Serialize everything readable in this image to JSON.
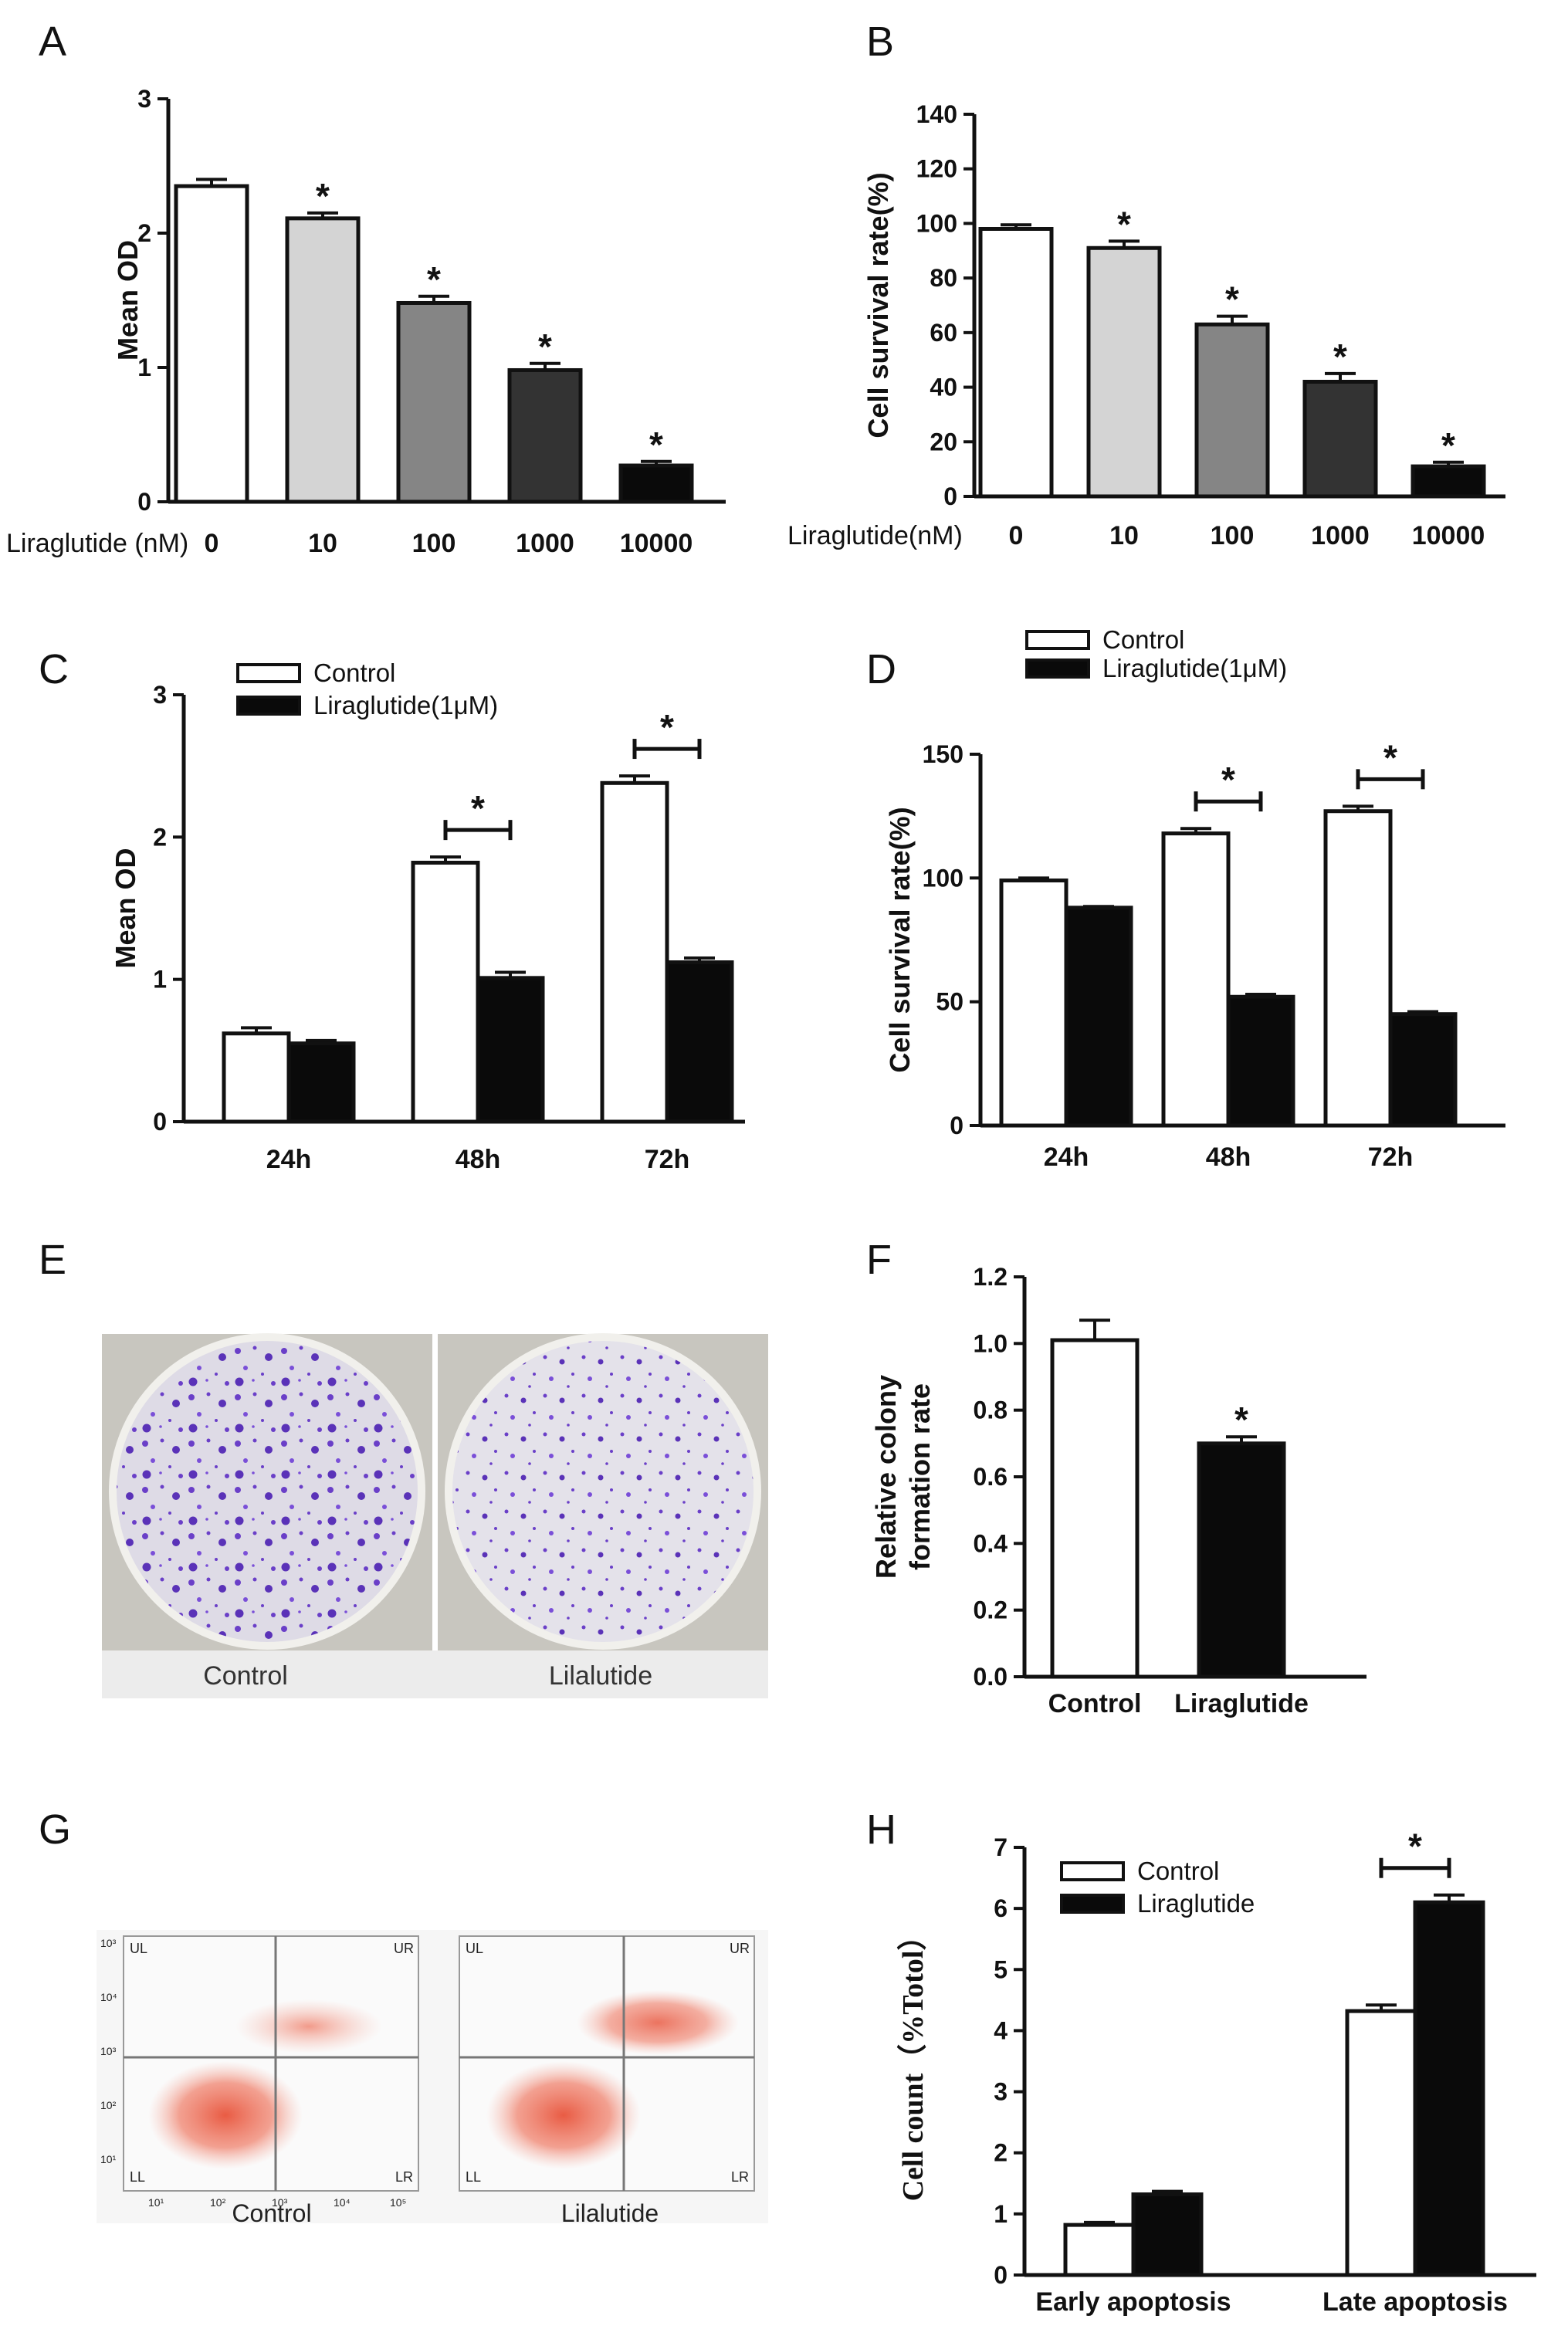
{
  "panel_letters": [
    "A",
    "B",
    "C",
    "D",
    "E",
    "F",
    "G",
    "H"
  ],
  "colors": {
    "bar_white": "#ffffff",
    "bar_light_gray": "#d4d4d4",
    "bar_mid_gray": "#858585",
    "bar_dark_gray": "#333333",
    "bar_black": "#0a0a0a",
    "axis": "#111111",
    "stain": "#6a3fc8",
    "dots": "#e8533a"
  },
  "chart_data": [
    {
      "panel": "A",
      "type": "bar",
      "x_prefix": "Liraglutide (nM)",
      "categories": [
        "0",
        "10",
        "100",
        "1000",
        "10000"
      ],
      "values": [
        2.35,
        2.11,
        1.48,
        0.98,
        0.27
      ],
      "errors": [
        0.05,
        0.04,
        0.05,
        0.05,
        0.03
      ],
      "significance": [
        "",
        "*",
        "*",
        "*",
        "*"
      ],
      "ylabel": "Mean OD",
      "ylim": [
        0,
        3
      ],
      "yticks": [
        "0",
        "1",
        "2",
        "3"
      ]
    },
    {
      "panel": "B",
      "type": "bar",
      "x_prefix": "Liraglutide(nM)",
      "categories": [
        "0",
        "10",
        "100",
        "1000",
        "10000"
      ],
      "values": [
        98,
        91,
        63,
        42,
        11
      ],
      "errors": [
        1.5,
        2.5,
        3,
        3,
        1.5
      ],
      "significance": [
        "",
        "*",
        "*",
        "*",
        "*"
      ],
      "ylabel": "Cell survival rate(%)",
      "ylim": [
        0,
        140
      ],
      "yticks": [
        "0",
        "20",
        "40",
        "60",
        "80",
        "100",
        "120",
        "140"
      ]
    },
    {
      "panel": "C",
      "type": "bar",
      "categories": [
        "24h",
        "48h",
        "72h"
      ],
      "series": [
        {
          "name": "Control",
          "values": [
            0.62,
            1.82,
            2.38
          ],
          "errors": [
            0.04,
            0.04,
            0.05
          ]
        },
        {
          "name": "Liraglutide(1μM)",
          "values": [
            0.55,
            1.01,
            1.12
          ],
          "errors": [
            0.02,
            0.04,
            0.03
          ]
        }
      ],
      "significance": [
        "",
        "*",
        "*"
      ],
      "ylabel": "Mean OD",
      "ylim": [
        0,
        3
      ],
      "yticks": [
        "0",
        "1",
        "2",
        "3"
      ],
      "legend_position": "top-left"
    },
    {
      "panel": "D",
      "type": "bar",
      "categories": [
        "24h",
        "48h",
        "72h"
      ],
      "series": [
        {
          "name": "Control",
          "values": [
            99,
            118,
            127
          ],
          "errors": [
            1,
            2,
            2
          ]
        },
        {
          "name": "Liraglutide(1μM)",
          "values": [
            88,
            52,
            45
          ],
          "errors": [
            0.5,
            1,
            1
          ]
        }
      ],
      "significance": [
        "",
        "*",
        "*"
      ],
      "ylabel": "Cell survival rate(%)",
      "ylim": [
        0,
        150
      ],
      "yticks": [
        "0",
        "50",
        "100",
        "150"
      ],
      "legend_position": "top-left"
    },
    {
      "panel": "F",
      "type": "bar",
      "categories": [
        "Control",
        "Liraglutide"
      ],
      "values": [
        1.01,
        0.7
      ],
      "errors": [
        0.06,
        0.02
      ],
      "significance": [
        "",
        "*"
      ],
      "ylabel": "Relative colony formation rate",
      "ylabel_lines": [
        "Relative colony",
        "formation rate"
      ],
      "ylim": [
        0,
        1.2
      ],
      "yticks": [
        "0.0",
        "0.2",
        "0.4",
        "0.6",
        "0.8",
        "1.0",
        "1.2"
      ]
    },
    {
      "panel": "H",
      "type": "bar",
      "categories": [
        "Early apoptosis",
        "Late apoptosis"
      ],
      "series": [
        {
          "name": "Control",
          "values": [
            0.82,
            4.32
          ],
          "errors": [
            0.04,
            0.1
          ]
        },
        {
          "name": "Liraglutide",
          "values": [
            1.32,
            6.1
          ],
          "errors": [
            0.05,
            0.12
          ]
        }
      ],
      "significance": [
        "",
        "*"
      ],
      "ylabel": "Cell count（%Totol）",
      "ylim": [
        0,
        7
      ],
      "yticks": [
        "0",
        "1",
        "2",
        "3",
        "4",
        "5",
        "6",
        "7"
      ],
      "legend_position": "top-left"
    }
  ],
  "panel_e": {
    "captions": [
      "Control",
      "Lilalutide"
    ]
  },
  "panel_g": {
    "captions": [
      "Control",
      "Lilalutide"
    ],
    "quadrants": [
      "UL",
      "UR",
      "LL",
      "LR"
    ],
    "yaxis_ticks": [
      "10³",
      "10⁴",
      "10³",
      "10²",
      "10¹"
    ],
    "xaxis_ticks": [
      "10¹",
      "10²",
      "10³",
      "10⁴",
      "10⁵"
    ]
  }
}
